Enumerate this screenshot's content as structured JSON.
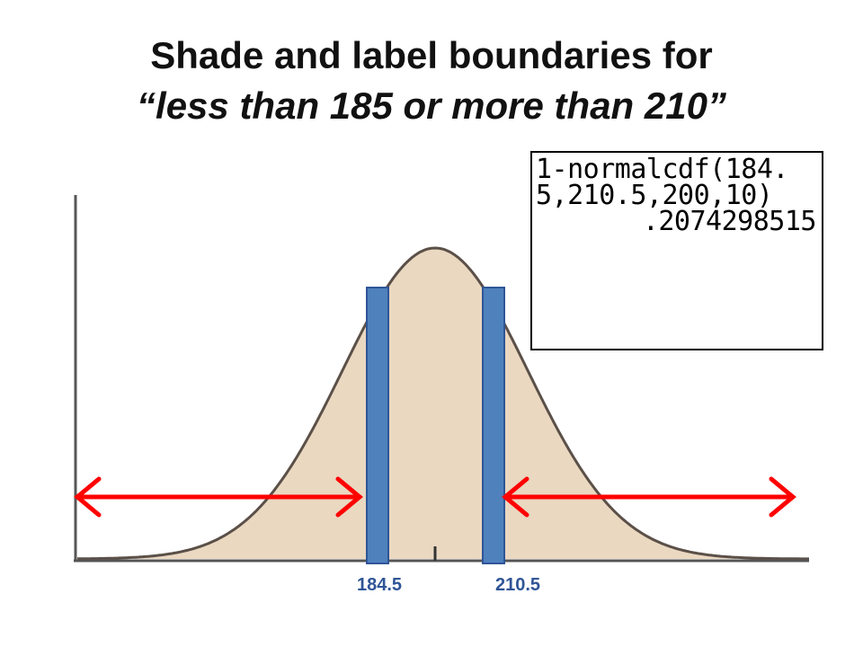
{
  "title": {
    "line1": "Shade and label boundaries for",
    "line2": "“less than 185 or more than 210”"
  },
  "calculator": {
    "line1": "1-normalcdf(184.",
    "line2": "5,210.5,200,10)",
    "result": ".2074298515"
  },
  "boundaries": {
    "lower": "184.5",
    "upper": "210.5"
  },
  "colors": {
    "curve_fill": "#ead8c1",
    "curve_stroke": "#5b5048",
    "bar": "#4f81bd",
    "bar_border": "#2f5597",
    "arrow": "#ff0000",
    "label": "#2f5597"
  }
}
